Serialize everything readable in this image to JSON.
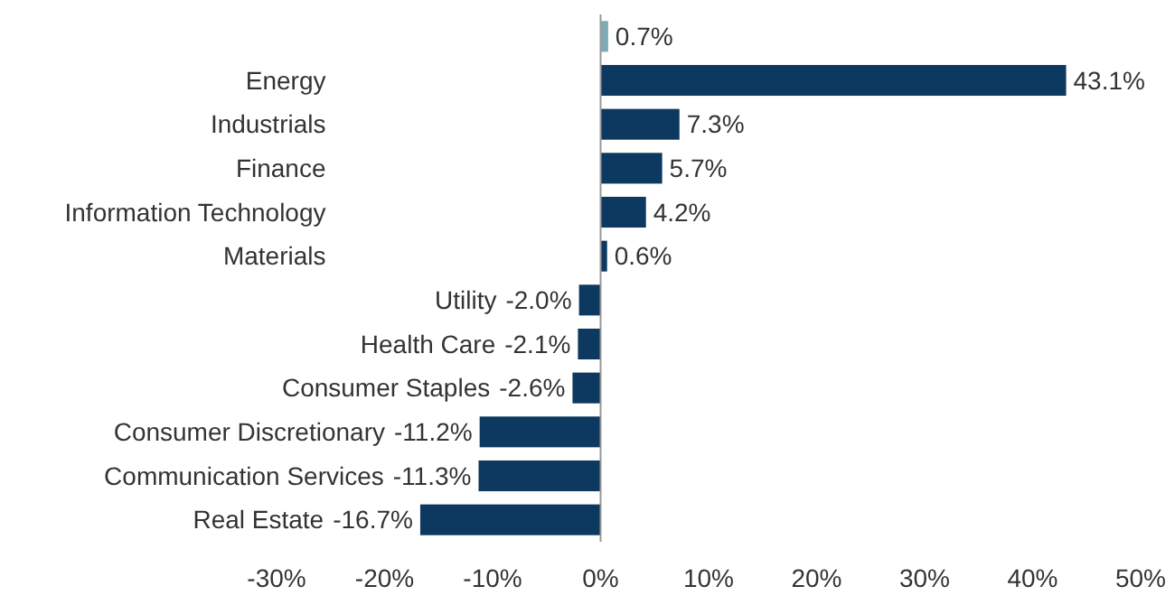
{
  "chart_data": {
    "type": "bar",
    "orientation": "horizontal",
    "categories": [
      null,
      "Energy",
      "Industrials",
      "Finance",
      "Information Technology",
      "Materials",
      "Utility",
      "Health Care",
      "Consumer Staples",
      "Consumer Discretionary",
      "Communication Services",
      "Real Estate"
    ],
    "values": [
      0.7,
      43.1,
      7.3,
      5.7,
      4.2,
      0.6,
      -2.0,
      -2.1,
      -2.6,
      -11.2,
      -11.3,
      -16.7
    ],
    "colors": [
      "#7fa9b5",
      "#0d3860",
      "#0d3860",
      "#0d3860",
      "#0d3860",
      "#0d3860",
      "#0d3860",
      "#0d3860",
      "#0d3860",
      "#0d3860",
      "#0d3860",
      "#0d3860"
    ],
    "value_labels": [
      "0.7%",
      "43.1%",
      "7.3%",
      "5.7%",
      "4.2%",
      "0.6%",
      "-2.0%",
      "-2.1%",
      "-2.6%",
      "-11.2%",
      "-11.3%",
      "-16.7%"
    ],
    "xlim": [
      -30,
      50
    ],
    "xticks": [
      {
        "value": -30,
        "label": "-30%"
      },
      {
        "value": -20,
        "label": "-20%"
      },
      {
        "value": -10,
        "label": "-10%"
      },
      {
        "value": 0,
        "label": "0%"
      },
      {
        "value": 10,
        "label": "10%"
      },
      {
        "value": 20,
        "label": "20%"
      },
      {
        "value": 30,
        "label": "30%"
      },
      {
        "value": 40,
        "label": "40%"
      },
      {
        "value": 50,
        "label": "50%"
      }
    ]
  }
}
